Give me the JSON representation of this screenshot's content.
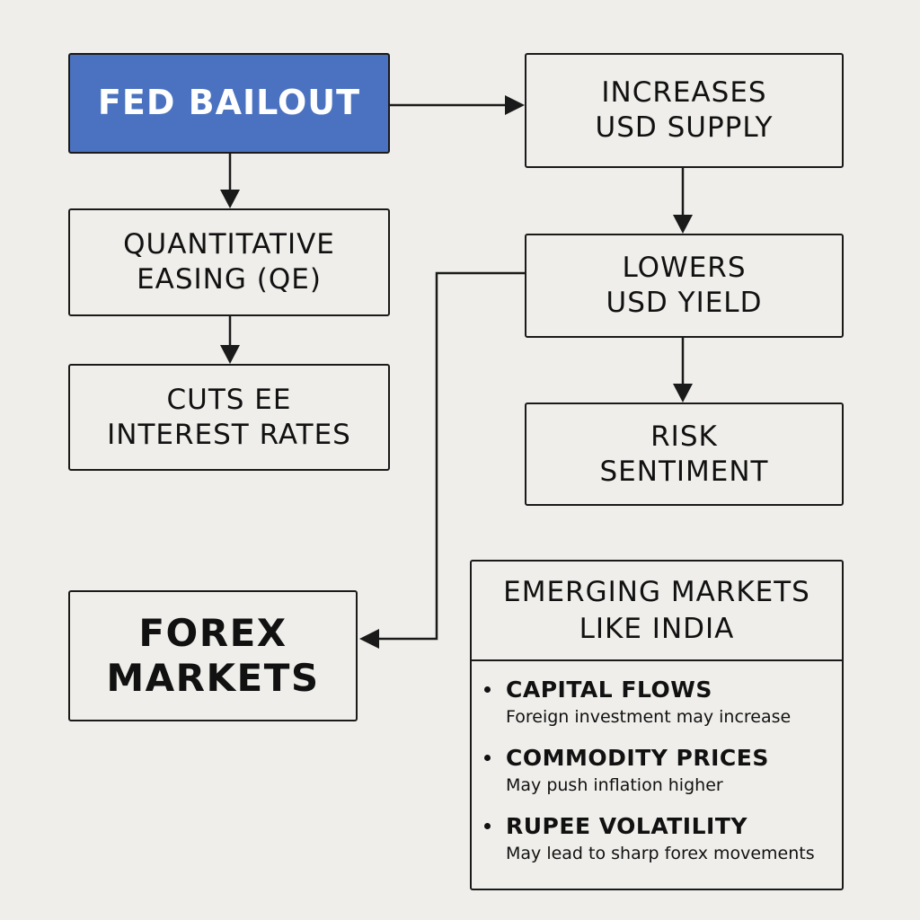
{
  "nodes": {
    "fed_bailout": {
      "lines": [
        "FED BAILOUT"
      ],
      "color": "#4a72c0"
    },
    "quantitative_easing": {
      "lines": [
        "QUANTITATIVE",
        "EASING (QE)"
      ]
    },
    "cuts_interest_rates": {
      "lines": [
        "CUTS EE",
        "INTEREST RATES"
      ]
    },
    "increases_usd_supply": {
      "lines": [
        "INCREASES",
        "USD SUPPLY"
      ]
    },
    "lowers_usd_yield": {
      "lines": [
        "LOWERS",
        "USD YIELD"
      ]
    },
    "risk_sentiment": {
      "lines": [
        "RISK",
        "SENTIMENT"
      ]
    },
    "forex_markets": {
      "lines": [
        "FOREX",
        "MARKETS"
      ]
    }
  },
  "emerging_markets": {
    "title_lines": [
      "EMERGING MARKETS",
      "LIKE INDIA"
    ],
    "items": [
      {
        "title": "CAPITAL FLOWS",
        "desc": "Foreign investment may increase"
      },
      {
        "title": "COMMODITY PRICES",
        "desc": "May push inflation higher"
      },
      {
        "title": "RUPEE VOLATILITY",
        "desc": "May lead to sharp forex movements"
      }
    ]
  },
  "edges": [
    {
      "from": "fed_bailout",
      "to": "increases_usd_supply"
    },
    {
      "from": "fed_bailout",
      "to": "quantitative_easing"
    },
    {
      "from": "quantitative_easing",
      "to": "cuts_interest_rates"
    },
    {
      "from": "increases_usd_supply",
      "to": "lowers_usd_yield"
    },
    {
      "from": "lowers_usd_yield",
      "to": "risk_sentiment"
    },
    {
      "from": "lowers_usd_yield",
      "to": "forex_markets"
    }
  ]
}
